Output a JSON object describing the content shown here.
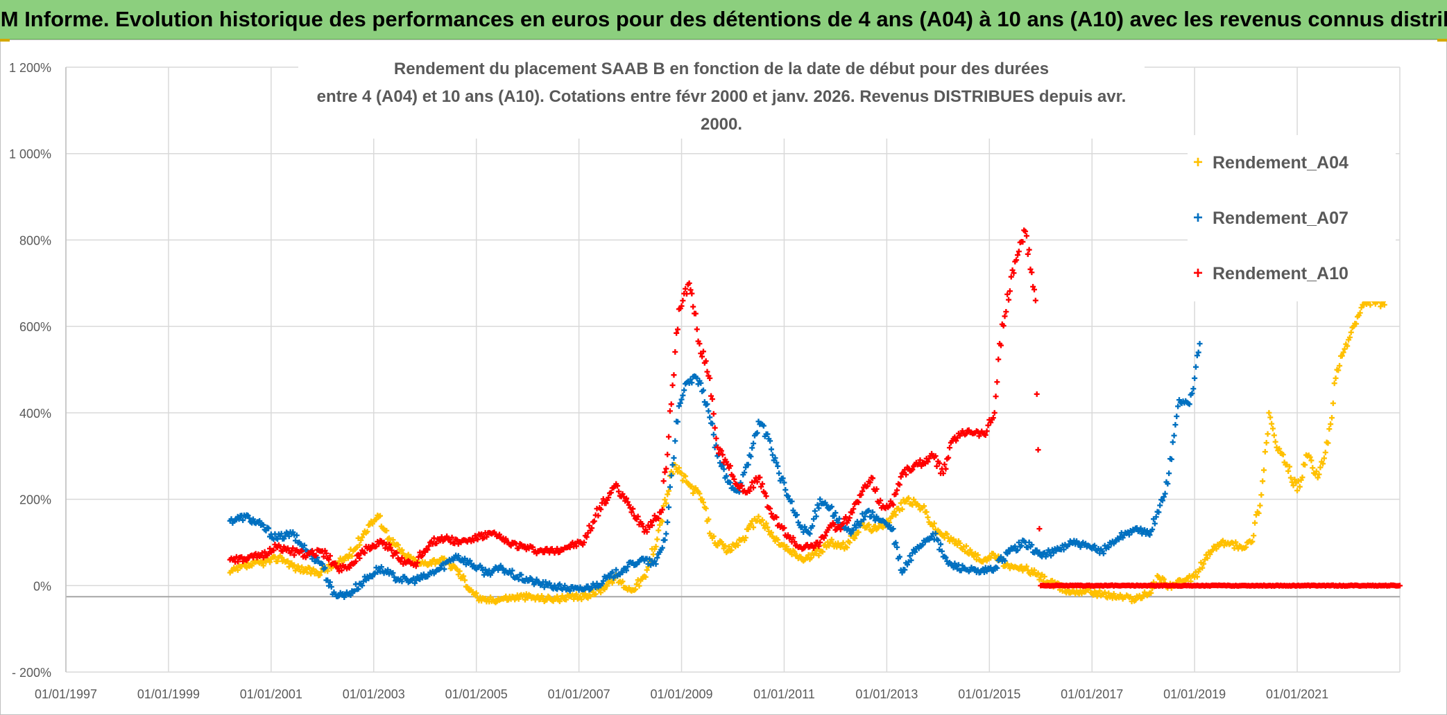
{
  "banner": {
    "title": "ADAM Informe. Evolution historique des performances en euros pour des détentions de 4 ans (A04) à 10 ans (A10) avec les revenus connus distribués"
  },
  "chart_data": {
    "type": "scatter",
    "title_line1": "Rendement du placement SAAB B en fonction de la date de début pour des durées",
    "title_line2": "entre 4 (A04) et 10 ans (A10). Cotations entre févr 2000 et janv. 2026. Revenus DISTRIBUES depuis avr. 2000.",
    "xlabel": "",
    "ylabel": "",
    "x_tick_labels": [
      "01/01/1997",
      "01/01/1999",
      "01/01/2001",
      "01/01/2003",
      "01/01/2005",
      "01/01/2007",
      "01/01/2009",
      "01/01/2011",
      "01/01/2013",
      "01/01/2015",
      "01/01/2017",
      "01/01/2019",
      "01/01/2021"
    ],
    "xlim": [
      1997.0,
      2023.0
    ],
    "y_tick_labels": [
      "1 200%",
      "1 000%",
      "800%",
      "600%",
      "400%",
      "200%",
      "0%",
      "- 200%"
    ],
    "ylim": [
      -200,
      1200
    ],
    "grid": true,
    "legend_position": "top-right",
    "marker": "+",
    "series": [
      {
        "name": "Rendement_A04",
        "color": "#ffc000",
        "points": [
          [
            2000.2,
            30
          ],
          [
            2000.5,
            45
          ],
          [
            2000.9,
            55
          ],
          [
            2001.2,
            65
          ],
          [
            2001.5,
            40
          ],
          [
            2001.9,
            30
          ],
          [
            2002.3,
            50
          ],
          [
            2002.6,
            80
          ],
          [
            2002.9,
            140
          ],
          [
            2003.1,
            160
          ],
          [
            2003.3,
            110
          ],
          [
            2003.6,
            70
          ],
          [
            2003.9,
            50
          ],
          [
            2004.3,
            60
          ],
          [
            2004.6,
            40
          ],
          [
            2004.9,
            -10
          ],
          [
            2005.1,
            -35
          ],
          [
            2005.5,
            -30
          ],
          [
            2005.9,
            -25
          ],
          [
            2006.3,
            -30
          ],
          [
            2006.7,
            -30
          ],
          [
            2007.1,
            -25
          ],
          [
            2007.4,
            -10
          ],
          [
            2007.7,
            20
          ],
          [
            2008.0,
            -10
          ],
          [
            2008.3,
            20
          ],
          [
            2008.6,
            150
          ],
          [
            2008.85,
            280
          ],
          [
            2009.1,
            240
          ],
          [
            2009.4,
            200
          ],
          [
            2009.6,
            110
          ],
          [
            2009.9,
            80
          ],
          [
            2010.2,
            110
          ],
          [
            2010.5,
            160
          ],
          [
            2010.8,
            110
          ],
          [
            2011.1,
            80
          ],
          [
            2011.4,
            60
          ],
          [
            2011.7,
            80
          ],
          [
            2011.9,
            100
          ],
          [
            2012.2,
            90
          ],
          [
            2012.5,
            140
          ],
          [
            2012.8,
            130
          ],
          [
            2013.1,
            160
          ],
          [
            2013.4,
            200
          ],
          [
            2013.7,
            180
          ],
          [
            2013.95,
            130
          ],
          [
            2014.2,
            110
          ],
          [
            2014.5,
            90
          ],
          [
            2014.8,
            60
          ],
          [
            2015.1,
            70
          ],
          [
            2015.4,
            40
          ],
          [
            2015.7,
            40
          ],
          [
            2016.0,
            20
          ],
          [
            2016.3,
            0
          ],
          [
            2016.6,
            -15
          ],
          [
            2016.9,
            -10
          ],
          [
            2017.2,
            -20
          ],
          [
            2017.5,
            -25
          ],
          [
            2017.8,
            -30
          ],
          [
            2018.1,
            -20
          ],
          [
            2018.3,
            20
          ],
          [
            2018.5,
            0
          ],
          [
            2018.8,
            10
          ],
          [
            2019.0,
            20
          ],
          [
            2019.2,
            60
          ],
          [
            2019.4,
            90
          ],
          [
            2019.6,
            100
          ],
          [
            2019.9,
            90
          ],
          [
            2020.1,
            100
          ],
          [
            2020.3,
            210
          ],
          [
            2020.45,
            400
          ],
          [
            2020.6,
            320
          ],
          [
            2020.8,
            280
          ],
          [
            2021.0,
            220
          ],
          [
            2021.2,
            300
          ],
          [
            2021.4,
            250
          ],
          [
            2021.6,
            330
          ],
          [
            2021.75,
            480
          ],
          [
            2021.9,
            540
          ],
          [
            2022.1,
            600
          ],
          [
            2022.3,
            650
          ],
          [
            2022.5,
            660
          ],
          [
            2022.7,
            650
          ]
        ]
      },
      {
        "name": "Rendement_A07",
        "color": "#0070c0",
        "points": [
          [
            2000.2,
            150
          ],
          [
            2000.5,
            160
          ],
          [
            2000.8,
            140
          ],
          [
            2001.1,
            110
          ],
          [
            2001.4,
            120
          ],
          [
            2001.7,
            80
          ],
          [
            2002.0,
            50
          ],
          [
            2002.2,
            -20
          ],
          [
            2002.5,
            -20
          ],
          [
            2002.8,
            10
          ],
          [
            2003.1,
            40
          ],
          [
            2003.4,
            20
          ],
          [
            2003.7,
            10
          ],
          [
            2004.0,
            20
          ],
          [
            2004.3,
            40
          ],
          [
            2004.6,
            70
          ],
          [
            2004.9,
            50
          ],
          [
            2005.2,
            30
          ],
          [
            2005.5,
            40
          ],
          [
            2005.8,
            20
          ],
          [
            2006.1,
            10
          ],
          [
            2006.4,
            0
          ],
          [
            2006.7,
            -5
          ],
          [
            2007.0,
            -10
          ],
          [
            2007.3,
            0
          ],
          [
            2007.6,
            20
          ],
          [
            2007.9,
            40
          ],
          [
            2008.2,
            60
          ],
          [
            2008.5,
            50
          ],
          [
            2008.7,
            120
          ],
          [
            2008.9,
            380
          ],
          [
            2009.1,
            470
          ],
          [
            2009.3,
            480
          ],
          [
            2009.5,
            420
          ],
          [
            2009.7,
            300
          ],
          [
            2009.9,
            240
          ],
          [
            2010.1,
            220
          ],
          [
            2010.3,
            280
          ],
          [
            2010.5,
            380
          ],
          [
            2010.7,
            340
          ],
          [
            2010.9,
            260
          ],
          [
            2011.1,
            200
          ],
          [
            2011.3,
            140
          ],
          [
            2011.5,
            120
          ],
          [
            2011.7,
            200
          ],
          [
            2011.9,
            180
          ],
          [
            2012.1,
            140
          ],
          [
            2012.3,
            120
          ],
          [
            2012.6,
            170
          ],
          [
            2012.9,
            150
          ],
          [
            2013.1,
            130
          ],
          [
            2013.3,
            30
          ],
          [
            2013.6,
            90
          ],
          [
            2013.9,
            120
          ],
          [
            2014.2,
            50
          ],
          [
            2014.5,
            40
          ],
          [
            2014.8,
            30
          ],
          [
            2015.1,
            40
          ],
          [
            2015.4,
            80
          ],
          [
            2015.7,
            100
          ],
          [
            2016.0,
            70
          ],
          [
            2016.3,
            80
          ],
          [
            2016.6,
            100
          ],
          [
            2016.9,
            90
          ],
          [
            2017.2,
            80
          ],
          [
            2017.5,
            110
          ],
          [
            2017.8,
            130
          ],
          [
            2018.1,
            120
          ],
          [
            2018.3,
            170
          ],
          [
            2018.5,
            260
          ],
          [
            2018.7,
            430
          ],
          [
            2018.9,
            420
          ],
          [
            2019.0,
            480
          ],
          [
            2019.1,
            560
          ]
        ]
      },
      {
        "name": "Rendement_A10",
        "color": "#ff0000",
        "points": [
          [
            2000.2,
            60
          ],
          [
            2000.5,
            60
          ],
          [
            2000.8,
            70
          ],
          [
            2001.1,
            90
          ],
          [
            2001.4,
            80
          ],
          [
            2001.7,
            70
          ],
          [
            2002.0,
            80
          ],
          [
            2002.3,
            40
          ],
          [
            2002.6,
            50
          ],
          [
            2002.9,
            90
          ],
          [
            2003.2,
            100
          ],
          [
            2003.5,
            60
          ],
          [
            2003.8,
            50
          ],
          [
            2004.1,
            100
          ],
          [
            2004.4,
            110
          ],
          [
            2004.7,
            100
          ],
          [
            2005.0,
            110
          ],
          [
            2005.3,
            120
          ],
          [
            2005.6,
            100
          ],
          [
            2005.9,
            90
          ],
          [
            2006.2,
            80
          ],
          [
            2006.5,
            80
          ],
          [
            2006.8,
            90
          ],
          [
            2007.1,
            100
          ],
          [
            2007.4,
            180
          ],
          [
            2007.7,
            230
          ],
          [
            2008.0,
            180
          ],
          [
            2008.3,
            130
          ],
          [
            2008.6,
            170
          ],
          [
            2008.8,
            420
          ],
          [
            2008.95,
            640
          ],
          [
            2009.15,
            700
          ],
          [
            2009.35,
            560
          ],
          [
            2009.55,
            480
          ],
          [
            2009.7,
            320
          ],
          [
            2009.9,
            280
          ],
          [
            2010.1,
            230
          ],
          [
            2010.3,
            220
          ],
          [
            2010.5,
            250
          ],
          [
            2010.7,
            180
          ],
          [
            2010.9,
            140
          ],
          [
            2011.1,
            110
          ],
          [
            2011.3,
            90
          ],
          [
            2011.5,
            90
          ],
          [
            2011.7,
            100
          ],
          [
            2011.9,
            140
          ],
          [
            2012.1,
            130
          ],
          [
            2012.3,
            170
          ],
          [
            2012.5,
            210
          ],
          [
            2012.7,
            250
          ],
          [
            2012.9,
            180
          ],
          [
            2013.1,
            190
          ],
          [
            2013.3,
            260
          ],
          [
            2013.6,
            280
          ],
          [
            2013.9,
            300
          ],
          [
            2014.1,
            260
          ],
          [
            2014.3,
            340
          ],
          [
            2014.6,
            360
          ],
          [
            2014.9,
            350
          ],
          [
            2015.1,
            400
          ],
          [
            2015.2,
            560
          ],
          [
            2015.5,
            750
          ],
          [
            2015.7,
            820
          ],
          [
            2015.9,
            660
          ],
          [
            2016.0,
            0
          ],
          [
            2017.0,
            0
          ],
          [
            2018.0,
            0
          ],
          [
            2019.0,
            0
          ],
          [
            2020.0,
            0
          ],
          [
            2021.0,
            0
          ],
          [
            2022.0,
            0
          ],
          [
            2023.0,
            0
          ]
        ]
      }
    ]
  }
}
